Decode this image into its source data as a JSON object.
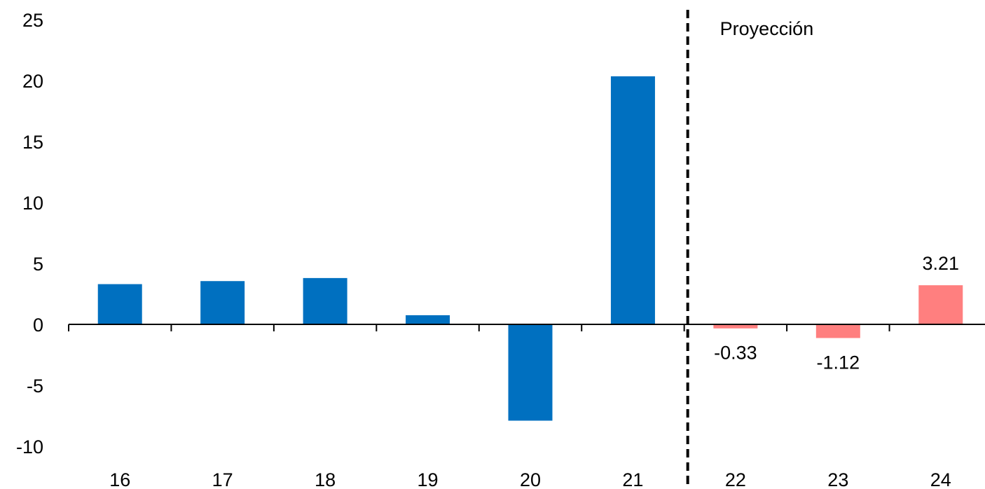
{
  "chart_data": {
    "type": "bar",
    "title": "",
    "xlabel": "",
    "ylabel": "",
    "categories": [
      "16",
      "17",
      "18",
      "19",
      "20",
      "21",
      "22",
      "23",
      "24"
    ],
    "values": [
      3.3,
      3.55,
      3.8,
      0.75,
      -7.9,
      20.35,
      -0.33,
      -1.12,
      3.21
    ],
    "projected": [
      false,
      false,
      false,
      false,
      false,
      false,
      true,
      true,
      true
    ],
    "data_labels": [
      "",
      "",
      "",
      "",
      "",
      "",
      "-0.33",
      "-1.12",
      "3.21"
    ],
    "ylim": [
      -10,
      25
    ],
    "yticks": [
      "-10",
      "-5",
      "0",
      "5",
      "10",
      "15",
      "20",
      "25"
    ],
    "grid": false,
    "colors": {
      "actual": "#0070c0",
      "projection": "#ff7f7f",
      "axis": "#000000"
    },
    "divider_after_category": "21",
    "annotation": "Proyección"
  }
}
